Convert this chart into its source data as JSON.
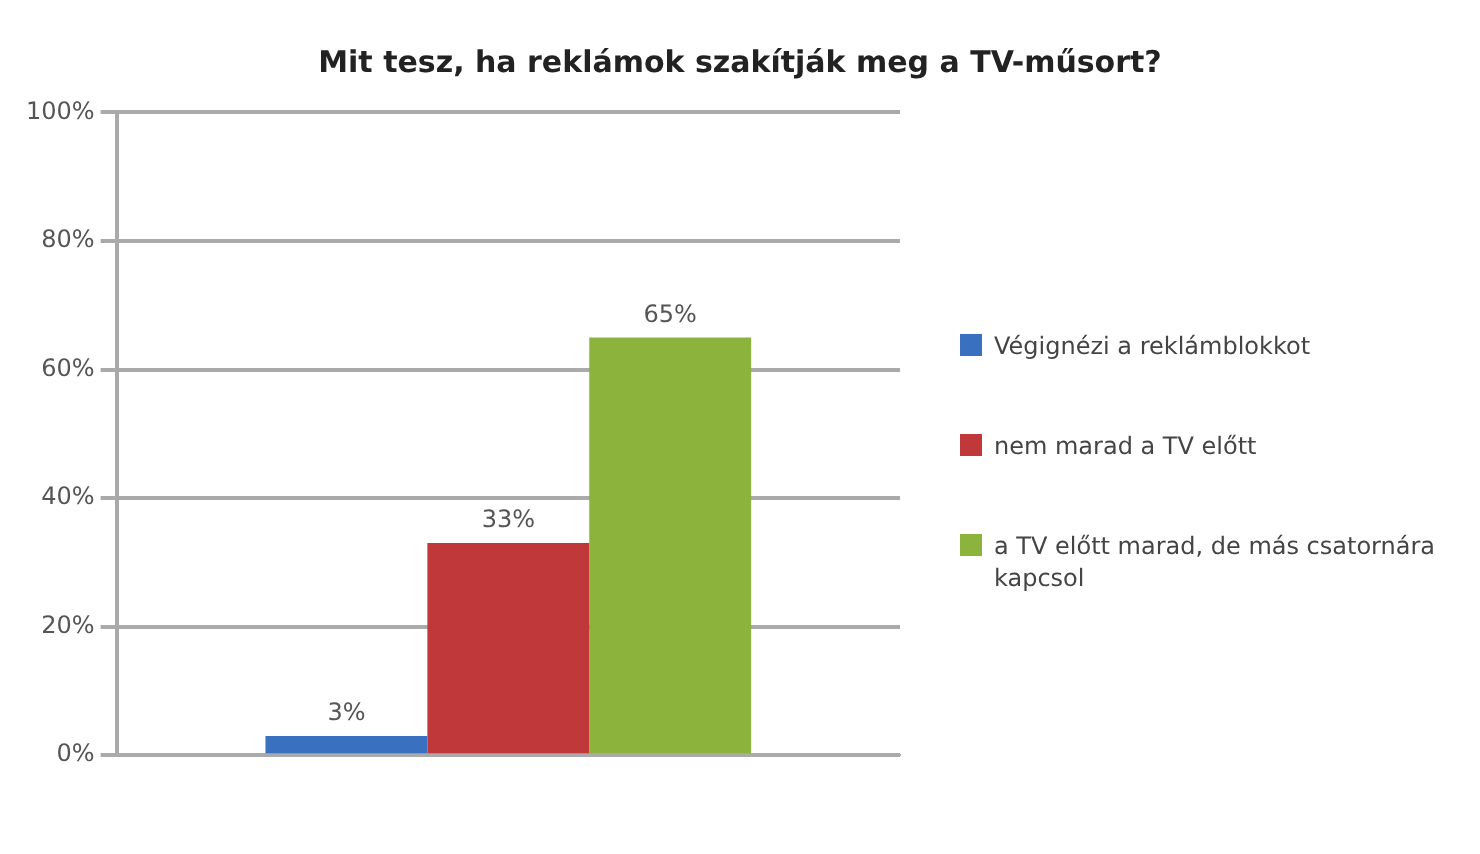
{
  "chart_data": {
    "type": "bar",
    "title": "Mit tesz, ha reklámok szakítják meg a TV-műsort?",
    "categories": [
      null
    ],
    "series": [
      {
        "name": "Végignézi a reklámblokkot",
        "color": "#3a70c0",
        "values": [
          3
        ],
        "value_labels": [
          "3%"
        ]
      },
      {
        "name": "nem marad a TV előtt",
        "color": "#c0383a",
        "values": [
          33
        ],
        "value_labels": [
          "33%"
        ]
      },
      {
        "name": "a TV előtt marad, de más csatornára kapcsol",
        "color": "#8cb43c",
        "values": [
          65
        ],
        "value_labels": [
          "65%"
        ]
      }
    ],
    "ylim": [
      0,
      100
    ],
    "yticks": [
      {
        "value": 0,
        "label": "0%"
      },
      {
        "value": 20,
        "label": "20%"
      },
      {
        "value": 40,
        "label": "40%"
      },
      {
        "value": 60,
        "label": "60%"
      },
      {
        "value": 80,
        "label": "80%"
      },
      {
        "value": 100,
        "label": "100%"
      }
    ],
    "grid": "y",
    "legend": "right"
  }
}
